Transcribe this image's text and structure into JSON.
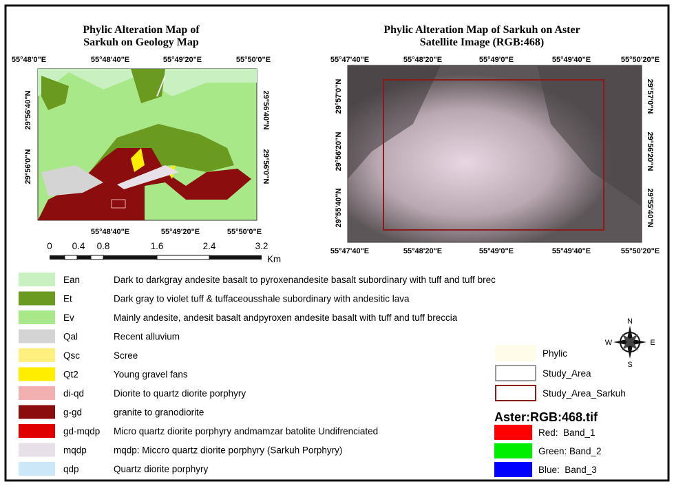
{
  "left_map": {
    "title_lines": [
      "Phylic Alteration Map of",
      "Sarkuh on Geology Map"
    ],
    "top_labels": [
      "55°48'0\"E",
      "55°48'40\"E",
      "55°49'20\"E",
      "55°50'0\"E"
    ],
    "bottom_labels": [
      "55°48'40\"E",
      "55°49'20\"E",
      "55°50'0\"E"
    ],
    "left_labels": [
      "29°56'40\"N",
      "29°56'0\"N"
    ],
    "right_labels": [
      "29°56'40\"N",
      "29°56'0\"N"
    ],
    "scale_labels": [
      "0",
      "0.4",
      "0.8",
      "1.6",
      "2.4",
      "3.2"
    ],
    "scale_unit": "Km"
  },
  "right_map": {
    "title_lines": [
      "Phylic Alteration Map of Sarkuh on Aster",
      "Satellite Image (RGB:468)"
    ],
    "top_labels": [
      "55°47'40\"E",
      "55°48'20\"E",
      "55°49'0\"E",
      "55°49'40\"E",
      "55°50'20\"E"
    ],
    "bottom_labels": [
      "55°47'40\"E",
      "55°48'20\"E",
      "55°49'0\"E",
      "55°49'40\"E",
      "55°50'20\"E"
    ],
    "left_labels": [
      "29°57'0\"N",
      "29°56'20\"N",
      "29°55'40\"N"
    ],
    "right_labels": [
      "29°57'0\"N",
      "29°56'20\"N",
      "29°55'40\"N"
    ]
  },
  "legend": [
    {
      "code": "Ean",
      "color": "#c8f0c0",
      "description": "Dark to darkgray andesite basalt to pyroxenandesite basalt subordinary with tuff and tuff brec"
    },
    {
      "code": "Et",
      "color": "#6b9a20",
      "description": "Dark gray to violet tuff & tuffaceousshale subordinary with andesitic lava"
    },
    {
      "code": "Ev",
      "color": "#a8e888",
      "description": "Mainly andesite, andesit basalt andpyroxen andesite basalt with tuff and tuff breccia"
    },
    {
      "code": "Qal",
      "color": "#d4d4d4",
      "description": "Recent alluvium"
    },
    {
      "code": "Qsc",
      "color": "#fff080",
      "description": "Scree"
    },
    {
      "code": "Qt2",
      "color": "#ffee00",
      "description": "Young gravel fans"
    },
    {
      "code": "di-qd",
      "color": "#f2b0b0",
      "description": "Diorite to quartz diorite porphyry"
    },
    {
      "code": "g-gd",
      "color": "#8b0d0d",
      "description": "granite to granodiorite"
    },
    {
      "code": "gd-mqdp",
      "color": "#e00000",
      "description": "Micro quartz diorite porphyry andmamzar batolite Undifrenciated"
    },
    {
      "code": "mqdp",
      "color": "#e8e0e8",
      "description": "mqdp: Miccro quartz diorite porphyry (Sarkuh Porphyry)"
    },
    {
      "code": "qdp",
      "color": "#cce8f8",
      "description": "Quartz diorite porphyry"
    }
  ],
  "study_legend": [
    {
      "label": "Phylic",
      "fill": "#fffcea",
      "stroke": "#fffcea"
    },
    {
      "label": "Study_Area",
      "fill": "#ffffff",
      "stroke": "#999999"
    },
    {
      "label": "Study_Area_Sarkuh",
      "fill": "#ffffff",
      "stroke": "#8b1a1a"
    }
  ],
  "raster": {
    "title": "Aster:RGB:468.tif",
    "bands": [
      {
        "label": "Red:  Band_1",
        "color": "#ff0000"
      },
      {
        "label": "Green: Band_2",
        "color": "#00ee00"
      },
      {
        "label": "Blue:  Band_3",
        "color": "#0000ff"
      }
    ]
  },
  "compass": {
    "n": "N",
    "s": "S",
    "e": "E",
    "w": "W"
  }
}
